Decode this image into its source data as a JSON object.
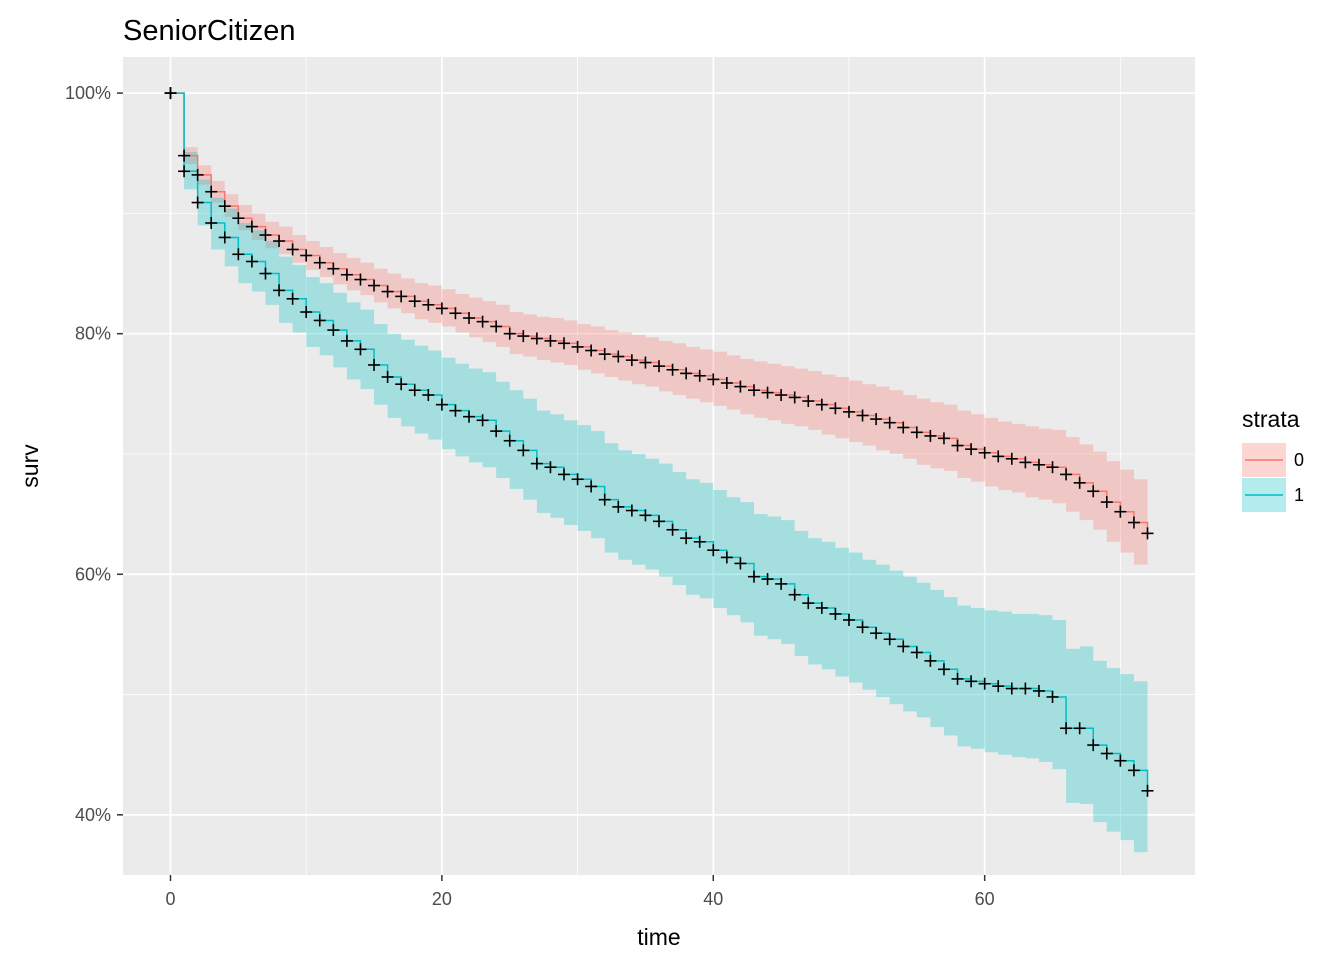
{
  "chart_data": {
    "type": "line",
    "title": "SeniorCitizen",
    "xlabel": "time",
    "ylabel": "surv",
    "xlim": [
      -3.5,
      75.5
    ],
    "ylim": [
      0.35,
      1.03
    ],
    "x_ticks": [
      0,
      20,
      40,
      60
    ],
    "x_tick_labels": [
      "0",
      "20",
      "40",
      "60"
    ],
    "y_ticks": [
      0.4,
      0.6,
      0.8,
      1.0
    ],
    "y_tick_labels": [
      "40%",
      "60%",
      "80%",
      "100%"
    ],
    "grid": true,
    "legend": {
      "title": "strata",
      "position": "right"
    },
    "colors": {
      "0": "#F8766D",
      "1": "#00BFC4",
      "panel": "#EBEBEB",
      "grid": "#FFFFFF",
      "censor": "#000000"
    },
    "series": [
      {
        "name": "0",
        "x": [
          0,
          1,
          2,
          3,
          4,
          5,
          6,
          7,
          8,
          9,
          10,
          11,
          12,
          13,
          14,
          15,
          16,
          17,
          18,
          19,
          20,
          21,
          22,
          23,
          24,
          25,
          26,
          27,
          28,
          29,
          30,
          31,
          32,
          33,
          34,
          35,
          36,
          37,
          38,
          39,
          40,
          41,
          42,
          43,
          44,
          45,
          46,
          47,
          48,
          49,
          50,
          51,
          52,
          53,
          54,
          55,
          56,
          57,
          58,
          59,
          60,
          61,
          62,
          63,
          64,
          65,
          66,
          67,
          68,
          69,
          70,
          71,
          72
        ],
        "surv": [
          1.0,
          0.948,
          0.932,
          0.918,
          0.906,
          0.896,
          0.889,
          0.882,
          0.877,
          0.87,
          0.865,
          0.859,
          0.854,
          0.849,
          0.845,
          0.84,
          0.835,
          0.831,
          0.827,
          0.824,
          0.821,
          0.817,
          0.813,
          0.81,
          0.806,
          0.8,
          0.798,
          0.796,
          0.794,
          0.792,
          0.789,
          0.786,
          0.783,
          0.781,
          0.778,
          0.776,
          0.773,
          0.77,
          0.767,
          0.765,
          0.762,
          0.759,
          0.756,
          0.753,
          0.751,
          0.749,
          0.747,
          0.744,
          0.741,
          0.738,
          0.735,
          0.732,
          0.729,
          0.726,
          0.722,
          0.718,
          0.715,
          0.713,
          0.707,
          0.704,
          0.701,
          0.698,
          0.696,
          0.693,
          0.691,
          0.689,
          0.683,
          0.676,
          0.669,
          0.66,
          0.652,
          0.643,
          0.634
        ],
        "lower": [
          1.0,
          0.941,
          0.924,
          0.909,
          0.897,
          0.886,
          0.878,
          0.871,
          0.866,
          0.859,
          0.853,
          0.847,
          0.841,
          0.836,
          0.832,
          0.826,
          0.821,
          0.817,
          0.812,
          0.809,
          0.806,
          0.801,
          0.797,
          0.793,
          0.789,
          0.783,
          0.781,
          0.778,
          0.776,
          0.774,
          0.77,
          0.767,
          0.764,
          0.761,
          0.758,
          0.756,
          0.752,
          0.749,
          0.746,
          0.743,
          0.74,
          0.737,
          0.733,
          0.73,
          0.728,
          0.725,
          0.723,
          0.72,
          0.716,
          0.713,
          0.71,
          0.707,
          0.703,
          0.7,
          0.696,
          0.691,
          0.688,
          0.686,
          0.68,
          0.677,
          0.673,
          0.67,
          0.668,
          0.664,
          0.662,
          0.659,
          0.652,
          0.645,
          0.637,
          0.627,
          0.618,
          0.608,
          0.624
        ],
        "upper": [
          1.0,
          0.955,
          0.94,
          0.927,
          0.916,
          0.907,
          0.9,
          0.893,
          0.889,
          0.882,
          0.877,
          0.872,
          0.867,
          0.863,
          0.859,
          0.854,
          0.85,
          0.846,
          0.842,
          0.84,
          0.837,
          0.833,
          0.83,
          0.827,
          0.824,
          0.818,
          0.816,
          0.814,
          0.813,
          0.811,
          0.808,
          0.806,
          0.803,
          0.801,
          0.799,
          0.797,
          0.794,
          0.792,
          0.789,
          0.787,
          0.785,
          0.782,
          0.779,
          0.777,
          0.775,
          0.773,
          0.771,
          0.769,
          0.766,
          0.764,
          0.761,
          0.758,
          0.756,
          0.753,
          0.749,
          0.746,
          0.743,
          0.741,
          0.736,
          0.733,
          0.73,
          0.727,
          0.725,
          0.723,
          0.721,
          0.72,
          0.714,
          0.708,
          0.702,
          0.694,
          0.687,
          0.679,
          0.644
        ],
        "censored_x": [
          0,
          1,
          2,
          3,
          4,
          5,
          6,
          7,
          8,
          9,
          10,
          11,
          12,
          13,
          14,
          15,
          16,
          17,
          18,
          19,
          20,
          21,
          22,
          23,
          24,
          25,
          26,
          27,
          28,
          29,
          30,
          31,
          32,
          33,
          34,
          35,
          36,
          37,
          38,
          39,
          40,
          41,
          42,
          43,
          44,
          45,
          46,
          47,
          48,
          49,
          50,
          51,
          52,
          53,
          54,
          55,
          56,
          57,
          58,
          59,
          60,
          61,
          62,
          63,
          64,
          65,
          66,
          67,
          68,
          69,
          70,
          71,
          72
        ]
      },
      {
        "name": "1",
        "x": [
          0,
          1,
          2,
          3,
          4,
          5,
          6,
          7,
          8,
          9,
          10,
          11,
          12,
          13,
          14,
          15,
          16,
          17,
          18,
          19,
          20,
          21,
          22,
          23,
          24,
          25,
          26,
          27,
          28,
          29,
          30,
          31,
          32,
          33,
          34,
          35,
          36,
          37,
          38,
          39,
          40,
          41,
          42,
          43,
          44,
          45,
          46,
          47,
          48,
          49,
          50,
          51,
          52,
          53,
          54,
          55,
          56,
          57,
          58,
          59,
          60,
          61,
          62,
          63,
          64,
          65,
          66,
          67,
          68,
          69,
          70,
          71,
          72
        ],
        "surv": [
          1.0,
          0.935,
          0.909,
          0.892,
          0.88,
          0.866,
          0.86,
          0.85,
          0.836,
          0.829,
          0.818,
          0.811,
          0.803,
          0.794,
          0.787,
          0.774,
          0.764,
          0.758,
          0.753,
          0.749,
          0.741,
          0.736,
          0.731,
          0.728,
          0.719,
          0.711,
          0.703,
          0.692,
          0.689,
          0.683,
          0.679,
          0.673,
          0.662,
          0.656,
          0.653,
          0.649,
          0.644,
          0.637,
          0.63,
          0.627,
          0.62,
          0.614,
          0.609,
          0.598,
          0.596,
          0.592,
          0.583,
          0.576,
          0.572,
          0.567,
          0.562,
          0.556,
          0.551,
          0.546,
          0.54,
          0.535,
          0.528,
          0.521,
          0.513,
          0.511,
          0.509,
          0.507,
          0.505,
          0.505,
          0.503,
          0.498,
          0.472,
          0.472,
          0.458,
          0.451,
          0.445,
          0.437,
          0.42
        ],
        "lower": [
          1.0,
          0.92,
          0.89,
          0.87,
          0.856,
          0.842,
          0.835,
          0.824,
          0.809,
          0.801,
          0.789,
          0.782,
          0.772,
          0.762,
          0.754,
          0.741,
          0.73,
          0.723,
          0.717,
          0.712,
          0.704,
          0.698,
          0.693,
          0.689,
          0.68,
          0.671,
          0.662,
          0.651,
          0.647,
          0.641,
          0.636,
          0.63,
          0.618,
          0.612,
          0.608,
          0.604,
          0.598,
          0.591,
          0.583,
          0.58,
          0.572,
          0.566,
          0.56,
          0.549,
          0.546,
          0.542,
          0.532,
          0.525,
          0.521,
          0.515,
          0.51,
          0.504,
          0.498,
          0.492,
          0.486,
          0.481,
          0.473,
          0.466,
          0.457,
          0.455,
          0.452,
          0.45,
          0.448,
          0.447,
          0.444,
          0.438,
          0.41,
          0.409,
          0.394,
          0.386,
          0.379,
          0.369,
          0.398
        ],
        "upper": [
          1.0,
          0.951,
          0.928,
          0.913,
          0.904,
          0.892,
          0.886,
          0.877,
          0.864,
          0.857,
          0.847,
          0.842,
          0.834,
          0.826,
          0.82,
          0.808,
          0.8,
          0.795,
          0.79,
          0.786,
          0.78,
          0.775,
          0.771,
          0.768,
          0.76,
          0.753,
          0.746,
          0.736,
          0.733,
          0.728,
          0.724,
          0.719,
          0.709,
          0.703,
          0.7,
          0.696,
          0.692,
          0.685,
          0.679,
          0.676,
          0.67,
          0.664,
          0.66,
          0.65,
          0.648,
          0.645,
          0.636,
          0.63,
          0.627,
          0.622,
          0.618,
          0.612,
          0.608,
          0.603,
          0.598,
          0.593,
          0.587,
          0.581,
          0.574,
          0.572,
          0.57,
          0.569,
          0.567,
          0.567,
          0.566,
          0.562,
          0.538,
          0.54,
          0.528,
          0.522,
          0.517,
          0.511,
          0.442
        ],
        "censored_x": [
          0,
          1,
          2,
          3,
          4,
          5,
          6,
          7,
          8,
          9,
          10,
          11,
          12,
          13,
          14,
          15,
          16,
          17,
          18,
          19,
          20,
          21,
          22,
          23,
          24,
          25,
          26,
          27,
          28,
          29,
          30,
          31,
          32,
          33,
          34,
          35,
          36,
          37,
          38,
          39,
          40,
          41,
          42,
          43,
          44,
          45,
          46,
          47,
          48,
          49,
          50,
          51,
          52,
          53,
          54,
          55,
          56,
          57,
          58,
          59,
          60,
          61,
          62,
          63,
          64,
          65,
          66,
          67,
          68,
          69,
          70,
          71,
          72
        ]
      }
    ]
  }
}
